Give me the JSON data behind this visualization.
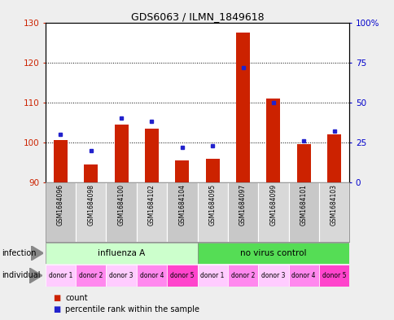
{
  "title": "GDS6063 / ILMN_1849618",
  "samples": [
    "GSM1684096",
    "GSM1684098",
    "GSM1684100",
    "GSM1684102",
    "GSM1684104",
    "GSM1684095",
    "GSM1684097",
    "GSM1684099",
    "GSM1684101",
    "GSM1684103"
  ],
  "red_values": [
    100.5,
    94.5,
    104.5,
    103.5,
    95.5,
    96.0,
    127.5,
    111.0,
    99.5,
    102.0
  ],
  "blue_values_pct": [
    30,
    20,
    40,
    38,
    22,
    23,
    72,
    50,
    26,
    32
  ],
  "ylim_left": [
    90,
    130
  ],
  "ylim_right": [
    0,
    100
  ],
  "yticks_left": [
    90,
    100,
    110,
    120,
    130
  ],
  "yticks_right": [
    0,
    25,
    50,
    75,
    100
  ],
  "yticklabels_right": [
    "0",
    "25",
    "50",
    "75",
    "100%"
  ],
  "infection_groups": [
    {
      "label": "influenza A",
      "start": 0,
      "end": 5
    },
    {
      "label": "no virus control",
      "start": 5,
      "end": 10
    }
  ],
  "individuals": [
    "donor 1",
    "donor 2",
    "donor 3",
    "donor 4",
    "donor 5",
    "donor 1",
    "donor 2",
    "donor 3",
    "donor 4",
    "donor 5"
  ],
  "bar_color": "#cc2200",
  "dot_color": "#2222cc",
  "fig_bg": "#eeeeee",
  "plot_bg": "#ffffff",
  "sample_colors": [
    "#c8c8c8",
    "#d8d8d8",
    "#c8c8c8",
    "#d8d8d8",
    "#c8c8c8",
    "#d8d8d8",
    "#c8c8c8",
    "#d8d8d8",
    "#c8c8c8",
    "#d8d8d8"
  ],
  "infection_color_1": "#ccffcc",
  "infection_color_2": "#55dd55",
  "ind_colors": [
    "#ffccff",
    "#ff88ee",
    "#ffccff",
    "#ff88ee",
    "#ff44cc",
    "#ffccff",
    "#ff88ee",
    "#ffccff",
    "#ff88ee",
    "#ff44cc"
  ],
  "axis_color_left": "#cc2200",
  "axis_color_right": "#0000cc",
  "grid_yticks": [
    100,
    110,
    120
  ]
}
